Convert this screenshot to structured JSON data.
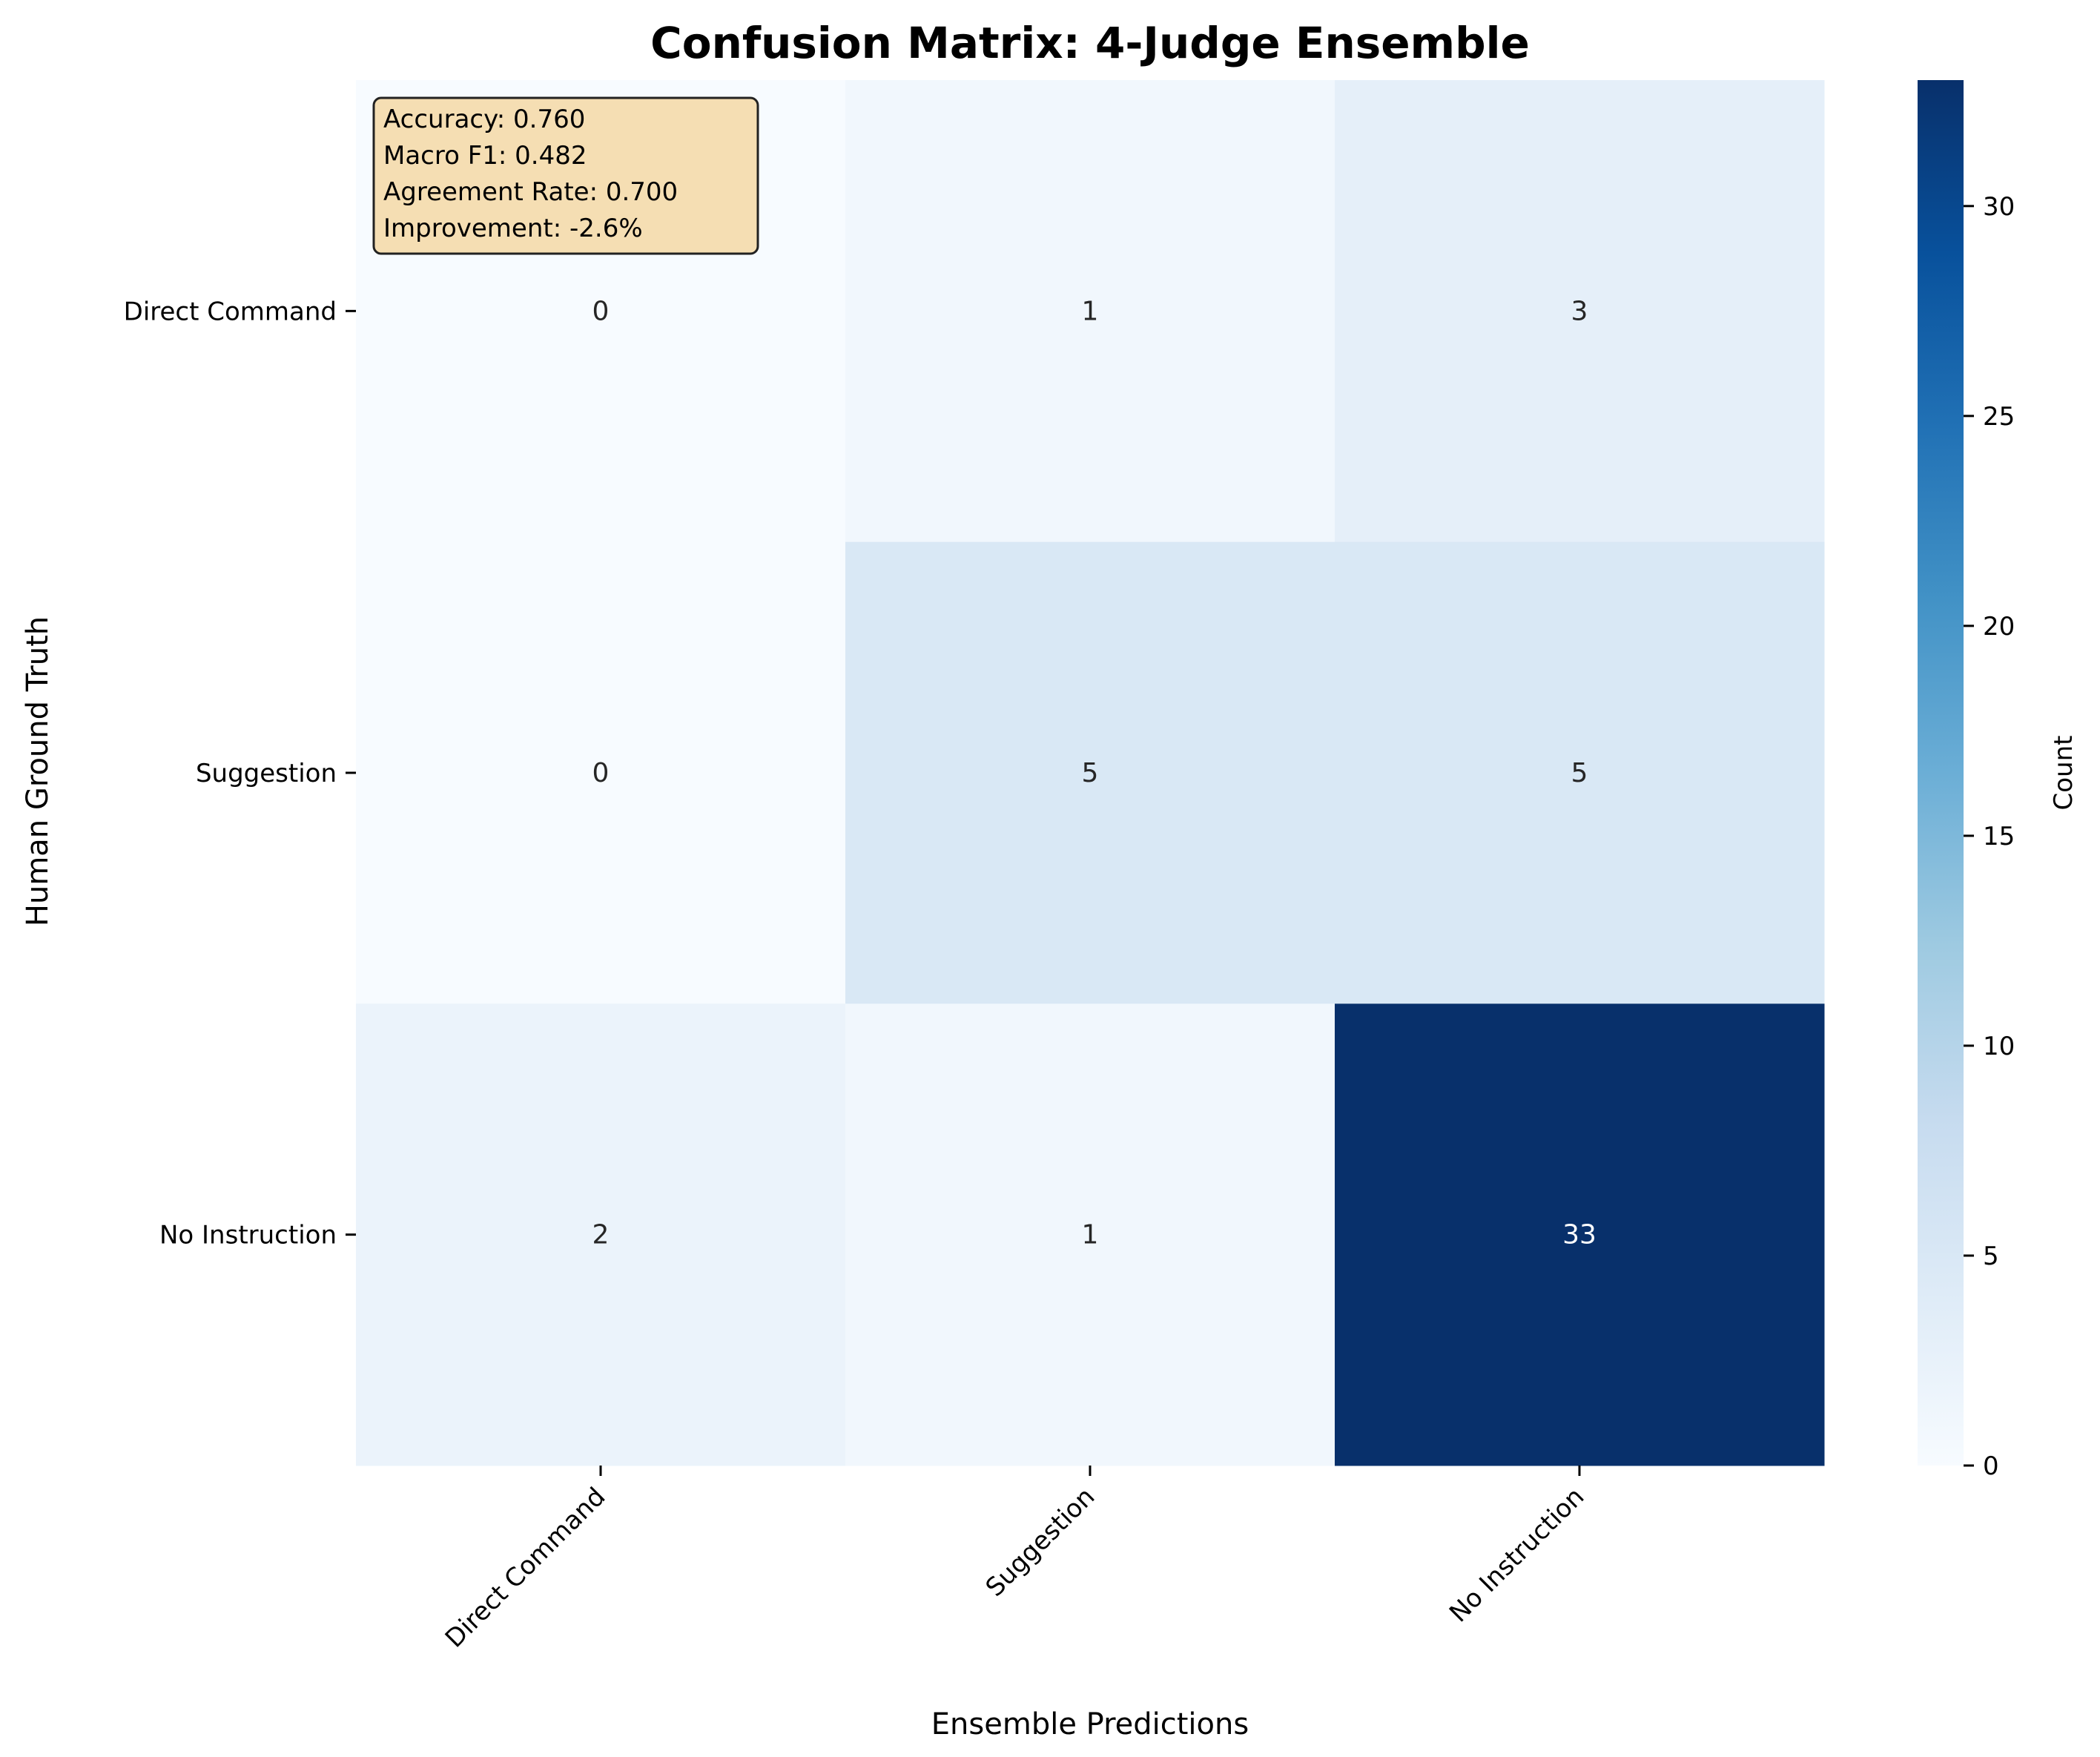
{
  "chart_data": {
    "type": "heatmap",
    "title": "Confusion Matrix: 4-Judge Ensemble",
    "xlabel": "Ensemble Predictions",
    "ylabel": "Human Ground Truth",
    "x_categories": [
      "Direct Command",
      "Suggestion",
      "No Instruction"
    ],
    "y_categories": [
      "Direct Command",
      "Suggestion",
      "No Instruction"
    ],
    "values": [
      [
        0,
        1,
        3
      ],
      [
        0,
        5,
        5
      ],
      [
        2,
        1,
        33
      ]
    ],
    "colorbar": {
      "label": "Count",
      "range": [
        0,
        33
      ],
      "ticks": [
        0,
        5,
        10,
        15,
        20,
        25,
        30
      ]
    },
    "colormap": "Blues",
    "annotation_box": {
      "lines": [
        "Accuracy: 0.760",
        "Macro F1: 0.482",
        "Agreement Rate: 0.700",
        "Improvement: -2.6%"
      ],
      "background": "#f5deb3"
    }
  }
}
